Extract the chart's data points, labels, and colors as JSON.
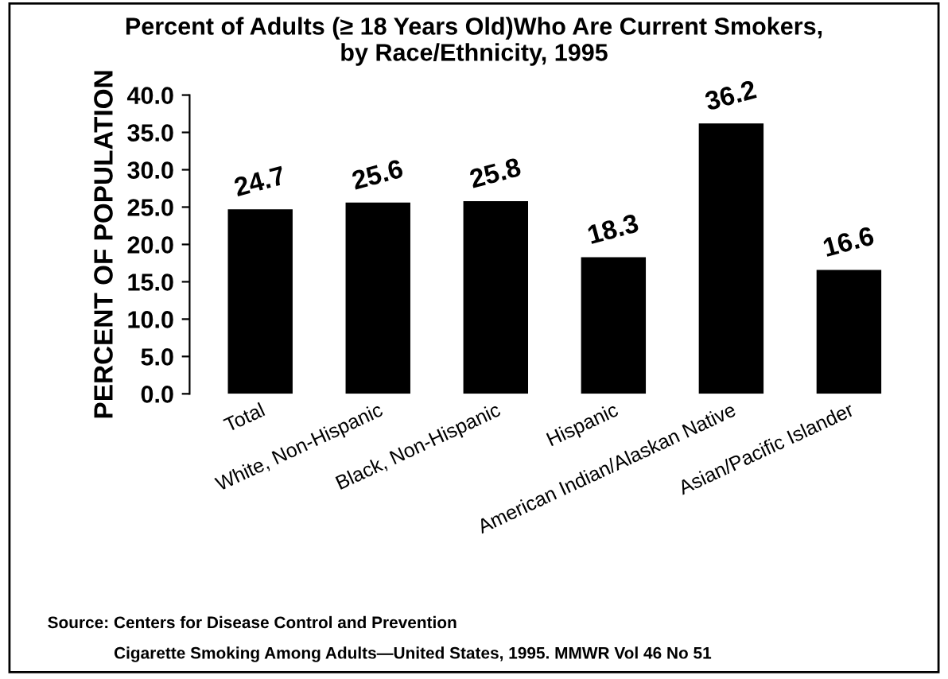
{
  "chart_data": {
    "type": "bar",
    "title": "Percent of Adults (≥ 18 Years Old)Who Are Current Smokers,\nby Race/Ethnicity, 1995",
    "ylabel": "PERCENT OF POPULATION",
    "categories": [
      "Total",
      "White, Non-Hispanic",
      "Black, Non-Hispanic",
      "Hispanic",
      "American Indian/Alaskan Native",
      "Asian/Pacific Islander"
    ],
    "values": [
      24.7,
      25.6,
      25.8,
      18.3,
      36.2,
      16.6
    ],
    "color": "#000000",
    "data_labels": true,
    "ylim": [
      0,
      40
    ],
    "yticks": [
      {
        "value": 0,
        "label": "0.0"
      },
      {
        "value": 5,
        "label": "5.0"
      },
      {
        "value": 10,
        "label": "10.0"
      },
      {
        "value": 15,
        "label": "15.0"
      },
      {
        "value": 20,
        "label": "20.0"
      },
      {
        "value": 25,
        "label": "25.0"
      },
      {
        "value": 30,
        "label": "30.0"
      },
      {
        "value": 35,
        "label": "35.0"
      },
      {
        "value": 40,
        "label": "40.0"
      }
    ],
    "grid": false,
    "annotations": [
      "Source: Centers for Disease Control and Prevention",
      "Cigarette Smoking Among Adults—United States, 1995. MMWR Vol 46 No 51"
    ]
  }
}
